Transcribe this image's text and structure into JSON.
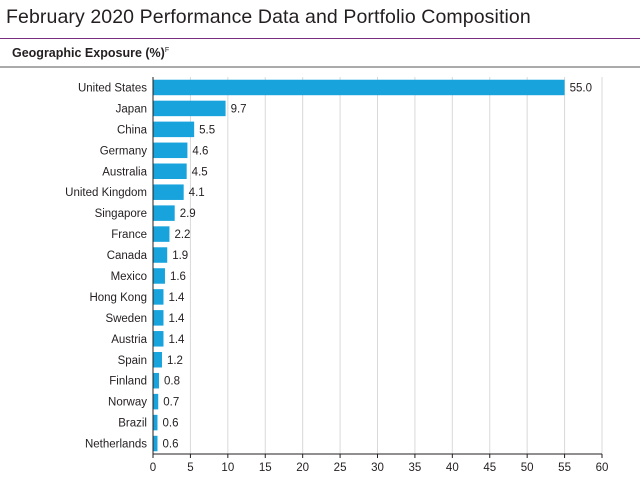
{
  "page": {
    "title": "February 2020 Performance Data and Portfolio Composition",
    "section_label": "Geographic Exposure (%)",
    "section_label_sup": "F"
  },
  "colors": {
    "bar": "#19a3dd",
    "title_rule": "#7b2d7d",
    "grid": "#d9d9d9",
    "text": "#231f20"
  },
  "chart_data": {
    "type": "bar",
    "orientation": "horizontal",
    "title": "",
    "xlabel": "",
    "ylabel": "",
    "xlim": [
      0,
      60
    ],
    "x_ticks": [
      0,
      5,
      10,
      15,
      20,
      25,
      30,
      35,
      40,
      45,
      50,
      55,
      60
    ],
    "grid": "vertical",
    "categories": [
      "United States",
      "Japan",
      "China",
      "Germany",
      "Australia",
      "United Kingdom",
      "Singapore",
      "France",
      "Canada",
      "Mexico",
      "Hong Kong",
      "Sweden",
      "Austria",
      "Spain",
      "Finland",
      "Norway",
      "Brazil",
      "Netherlands"
    ],
    "values": [
      55.0,
      9.7,
      5.5,
      4.6,
      4.5,
      4.1,
      2.9,
      2.2,
      1.9,
      1.6,
      1.4,
      1.4,
      1.4,
      1.2,
      0.8,
      0.7,
      0.6,
      0.6
    ],
    "value_labels": [
      "55.0",
      "9.7",
      "5.5",
      "4.6",
      "4.5",
      "4.1",
      "2.9",
      "2.2",
      "1.9",
      "1.6",
      "1.4",
      "1.4",
      "1.4",
      "1.2",
      "0.8",
      "0.7",
      "0.6",
      "0.6"
    ]
  }
}
